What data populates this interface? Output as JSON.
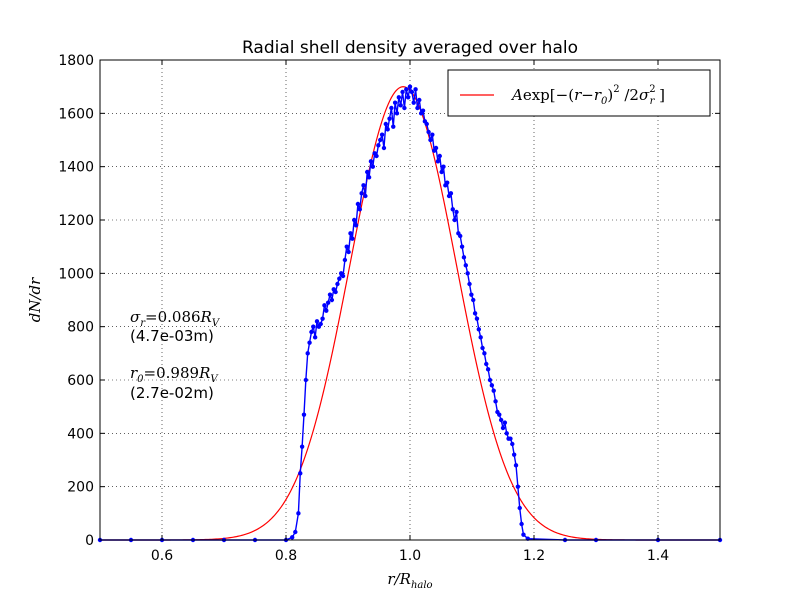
{
  "chart_data": {
    "type": "line",
    "title": "Radial shell density averaged over halo",
    "xlabel": "r/R_halo",
    "ylabel": "dN/dr",
    "xlim": [
      0.5,
      1.5
    ],
    "ylim": [
      0,
      1800
    ],
    "xticks": [
      0.6,
      0.8,
      1.0,
      1.2,
      1.4
    ],
    "xtick_labels": [
      "0.6",
      "0.8",
      "1.0",
      "1.2",
      "1.4"
    ],
    "yticks": [
      0,
      200,
      400,
      600,
      800,
      1000,
      1200,
      1400,
      1600,
      1800
    ],
    "ytick_labels": [
      "0",
      "200",
      "400",
      "600",
      "800",
      "1000",
      "1200",
      "1400",
      "1600",
      "1800"
    ],
    "grid": true,
    "legend_placement": "top-right",
    "legend": {
      "label": "A exp[-(r-r0)^2 / 2 sigma_r^2]"
    },
    "annotations": {
      "sigma_label": "σr=0.086RV",
      "sigma_err": "(4.7e-03m)",
      "r0_label": "r0=0.989RV",
      "r0_err": "(2.7e-02m)"
    },
    "series": [
      {
        "kind": "gaussian-fit",
        "color": "#ff0000",
        "params": {
          "A": 1700,
          "r0": 0.989,
          "sigma": 0.086
        }
      },
      {
        "kind": "data",
        "color": "#0000ff",
        "x": [
          0.5,
          0.55,
          0.6,
          0.65,
          0.7,
          0.75,
          0.8,
          0.81,
          0.815,
          0.82,
          0.823,
          0.826,
          0.829,
          0.832,
          0.835,
          0.838,
          0.841,
          0.844,
          0.847,
          0.85,
          0.853,
          0.856,
          0.859,
          0.862,
          0.865,
          0.868,
          0.871,
          0.874,
          0.877,
          0.88,
          0.883,
          0.886,
          0.889,
          0.892,
          0.895,
          0.898,
          0.901,
          0.904,
          0.907,
          0.91,
          0.913,
          0.916,
          0.919,
          0.922,
          0.925,
          0.928,
          0.931,
          0.934,
          0.937,
          0.94,
          0.943,
          0.946,
          0.949,
          0.952,
          0.955,
          0.958,
          0.961,
          0.964,
          0.967,
          0.97,
          0.973,
          0.976,
          0.979,
          0.982,
          0.985,
          0.988,
          0.991,
          0.994,
          0.997,
          1.0,
          1.003,
          1.006,
          1.009,
          1.012,
          1.015,
          1.018,
          1.021,
          1.024,
          1.027,
          1.03,
          1.033,
          1.036,
          1.039,
          1.042,
          1.045,
          1.048,
          1.051,
          1.054,
          1.057,
          1.06,
          1.063,
          1.066,
          1.069,
          1.072,
          1.075,
          1.078,
          1.081,
          1.084,
          1.087,
          1.09,
          1.093,
          1.096,
          1.099,
          1.102,
          1.105,
          1.108,
          1.111,
          1.114,
          1.117,
          1.12,
          1.123,
          1.126,
          1.129,
          1.132,
          1.135,
          1.138,
          1.141,
          1.144,
          1.147,
          1.15,
          1.153,
          1.156,
          1.159,
          1.162,
          1.165,
          1.168,
          1.171,
          1.174,
          1.177,
          1.18,
          1.183,
          1.19,
          1.25,
          1.3,
          1.4,
          1.5
        ],
        "y": [
          0,
          0,
          0,
          0,
          0,
          0,
          0,
          10,
          30,
          100,
          250,
          350,
          470,
          600,
          700,
          740,
          780,
          800,
          760,
          820,
          800,
          810,
          830,
          880,
          860,
          890,
          920,
          900,
          940,
          930,
          960,
          980,
          1000,
          990,
          1050,
          1100,
          1080,
          1150,
          1130,
          1200,
          1180,
          1260,
          1240,
          1300,
          1330,
          1290,
          1380,
          1360,
          1420,
          1400,
          1450,
          1440,
          1480,
          1500,
          1520,
          1470,
          1560,
          1540,
          1580,
          1620,
          1550,
          1640,
          1600,
          1660,
          1630,
          1680,
          1620,
          1690,
          1660,
          1700,
          1680,
          1640,
          1690,
          1620,
          1650,
          1600,
          1610,
          1570,
          1560,
          1530,
          1500,
          1520,
          1460,
          1470,
          1420,
          1440,
          1380,
          1400,
          1330,
          1340,
          1290,
          1300,
          1240,
          1200,
          1230,
          1150,
          1140,
          1100,
          1060,
          1030,
          1000,
          960,
          920,
          900,
          850,
          830,
          790,
          760,
          720,
          700,
          660,
          640,
          600,
          580,
          560,
          520,
          480,
          470,
          450,
          420,
          440,
          400,
          380,
          380,
          360,
          320,
          280,
          200,
          120,
          60,
          20,
          5,
          0,
          0,
          0,
          0
        ]
      }
    ]
  }
}
